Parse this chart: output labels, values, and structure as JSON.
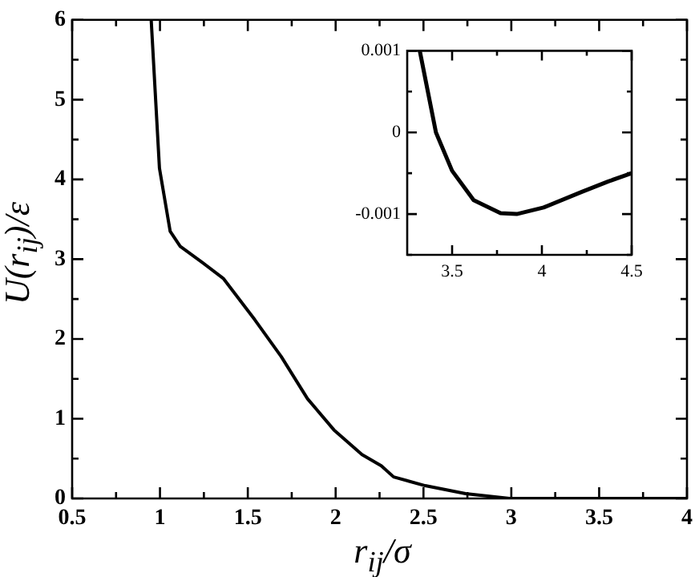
{
  "chart_data": [
    {
      "type": "line",
      "xlabel": "r$_{ij}$/σ",
      "ylabel": "U(r$_{ij}$)/ε",
      "xlim": [
        0.5,
        4
      ],
      "ylim": [
        0,
        6
      ],
      "xticks": [
        0.5,
        {
          "value": 0.75,
          "label": null
        },
        1,
        {
          "value": 1.25,
          "label": null
        },
        1.5,
        {
          "value": 1.75,
          "label": null
        },
        2,
        {
          "value": 2.25,
          "label": null
        },
        2.5,
        {
          "value": 2.75,
          "label": null
        },
        3,
        {
          "value": 3.25,
          "label": null
        },
        3.5,
        {
          "value": 3.75,
          "label": null
        },
        4
      ],
      "yticks": [
        0,
        {
          "value": 0.5,
          "label": null
        },
        1,
        {
          "value": 1.5,
          "label": null
        },
        2,
        {
          "value": 2.5,
          "label": null
        },
        3,
        {
          "value": 3.5,
          "label": null
        },
        4,
        {
          "value": 4.5,
          "label": null
        },
        5,
        {
          "value": 5.5,
          "label": null
        },
        6
      ],
      "grid": false,
      "legend": false,
      "marker": "none",
      "series": [
        {
          "color": "#000000",
          "x": [
            0.95,
            0.997,
            1.058,
            1.115,
            1.24,
            1.36,
            1.54,
            1.69,
            1.84,
            1.99,
            2.15,
            2.26,
            2.33,
            2.51,
            2.74,
            2.99,
            3.5,
            4
          ],
          "values": [
            6,
            4.14,
            3.35,
            3.16,
            2.96,
            2.76,
            2.24,
            1.78,
            1.25,
            0.86,
            0.55,
            0.41,
            0.27,
            0.16,
            0.06,
            0,
            0,
            0
          ]
        }
      ]
    },
    {
      "type": "line",
      "xlim": [
        3.25,
        4.5
      ],
      "ylim": [
        -0.0015,
        0.001
      ],
      "xticks": [
        3.5,
        {
          "value": 3.75,
          "label": null
        },
        4,
        {
          "value": 4.25,
          "label": null
        },
        4.5
      ],
      "yticks": [
        {
          "value": -0.0015,
          "label": null
        },
        -0.001,
        {
          "value": -0.0005,
          "label": null
        },
        0,
        {
          "value": 0.0005,
          "label": null
        },
        0.001
      ],
      "grid": false,
      "legend": false,
      "marker": "none",
      "series": [
        {
          "color": "#000000",
          "x": [
            3.32,
            3.41,
            3.5,
            3.62,
            3.77,
            3.86,
            4.01,
            4.22,
            4.37,
            4.5
          ],
          "values": [
            0.001,
            0,
            -0.00047,
            -0.00083,
            -0.00099,
            -0.001,
            -0.00092,
            -0.00073,
            -0.0006,
            -0.0005
          ]
        }
      ]
    }
  ]
}
